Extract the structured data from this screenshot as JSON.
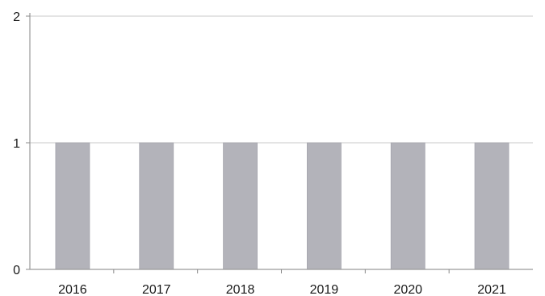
{
  "chart_data": {
    "type": "bar",
    "title": "",
    "xlabel": "",
    "ylabel": "",
    "categories": [
      "2016",
      "2017",
      "2018",
      "2019",
      "2020",
      "2021"
    ],
    "values": [
      1,
      1,
      1,
      1,
      1,
      1
    ],
    "ylim": [
      0,
      2
    ],
    "yticks": [
      "0",
      "1",
      "2"
    ],
    "grid": true,
    "legend": "none",
    "bar_color": "#b3b3ba",
    "bar_edge_color": "#a6a6ae",
    "grid_color": "#c8c8c8"
  }
}
